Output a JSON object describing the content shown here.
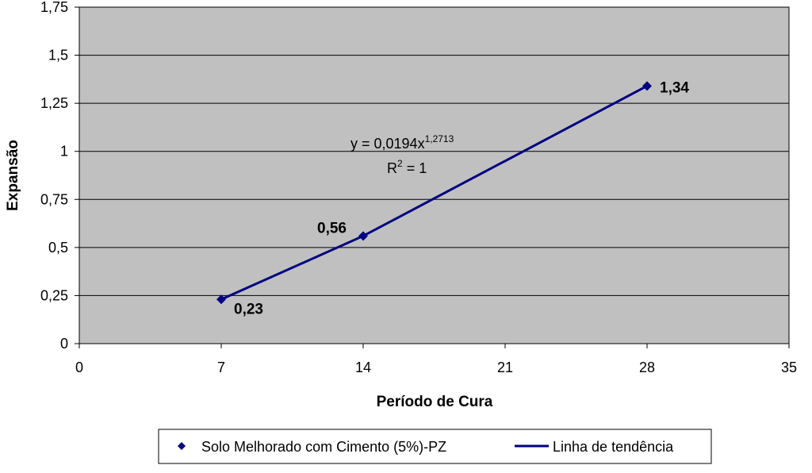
{
  "chart_data": {
    "type": "scatter",
    "y_label": "Expansão",
    "x_label": "Período de Cura",
    "x": [
      7,
      14,
      28
    ],
    "series": [
      {
        "name": "Solo Melhorado com Cimento (5%)-PZ",
        "color": "#000080",
        "values": [
          0.23,
          0.56,
          1.34
        ],
        "value_labels": [
          "0,23",
          "0,56",
          "1,34"
        ]
      },
      {
        "name": "Linha de tendência",
        "color": "#000080",
        "values": [
          0.23,
          0.56,
          1.34
        ]
      }
    ],
    "annotation": {
      "equation": "y = 0,0194x",
      "equation_exponent": "1,2713",
      "r2": "R",
      "r2_exponent": "2",
      "r2_value": " = 1"
    },
    "xlim": [
      0,
      35
    ],
    "xticks": [
      0,
      7,
      14,
      21,
      28,
      35
    ],
    "ylim": [
      0,
      1.75
    ],
    "yticks": [
      0,
      {
        "value": 0.25,
        "label": "0,25"
      },
      {
        "value": 0.5,
        "label": "0,5"
      },
      {
        "value": 0.75,
        "label": "0,75"
      },
      1,
      {
        "value": 1.25,
        "label": "1,25"
      },
      {
        "value": 1.5,
        "label": "1,5"
      },
      {
        "value": 1.75,
        "label": "1,75"
      }
    ],
    "grid": true,
    "plot_background": "#c0c0c0"
  }
}
